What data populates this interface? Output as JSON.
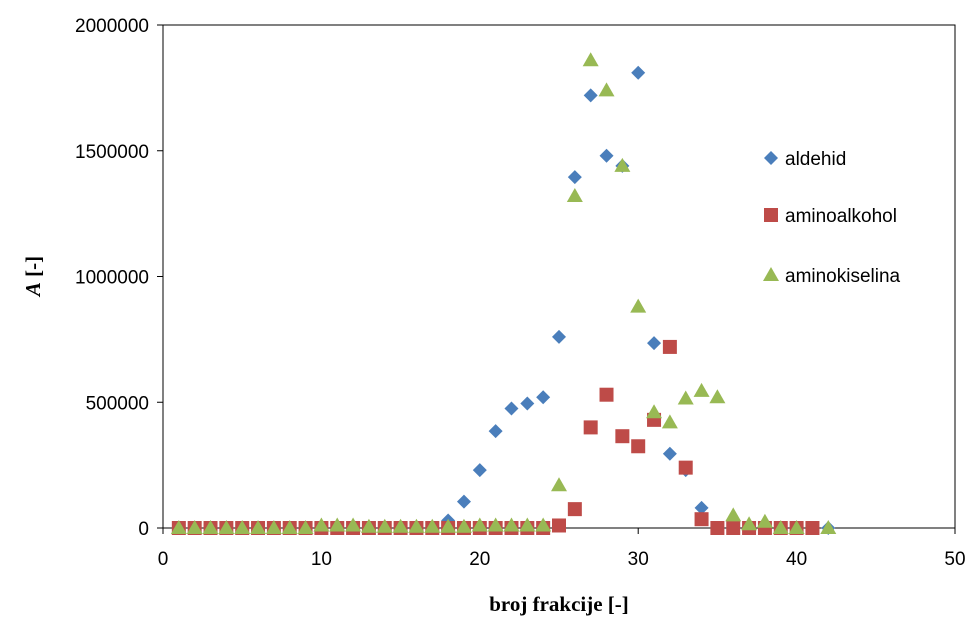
{
  "chart_data": {
    "type": "scatter",
    "xlabel": "broj frakcije [-]",
    "ylabel_italic": "A",
    "ylabel_rest": " [-]",
    "xlim": [
      0,
      50
    ],
    "ylim": [
      0,
      2000000
    ],
    "xticks": [
      0,
      10,
      20,
      30,
      40,
      50
    ],
    "yticks": [
      0,
      500000,
      1000000,
      1500000,
      2000000
    ],
    "grid": false,
    "legend_position": "right",
    "series": [
      {
        "name": "aldehid",
        "marker": "diamond",
        "color": "#4a7ebb",
        "x": [
          1,
          2,
          3,
          4,
          5,
          6,
          7,
          8,
          9,
          10,
          11,
          12,
          13,
          14,
          15,
          16,
          17,
          18,
          19,
          20,
          21,
          22,
          23,
          24,
          25,
          26,
          27,
          28,
          29,
          30,
          31,
          32,
          33,
          34,
          35,
          36,
          37,
          38,
          39,
          40,
          41,
          42
        ],
        "y": [
          0,
          0,
          0,
          0,
          0,
          0,
          0,
          0,
          0,
          0,
          0,
          0,
          0,
          0,
          0,
          0,
          0,
          30000,
          105000,
          230000,
          385000,
          475000,
          495000,
          520000,
          760000,
          1395000,
          1720000,
          1480000,
          1440000,
          1810000,
          735000,
          295000,
          230000,
          80000,
          0,
          0,
          0,
          0,
          0,
          0,
          0,
          0
        ]
      },
      {
        "name": "aminoalkohol",
        "marker": "square",
        "color": "#be4b48",
        "x": [
          1,
          2,
          3,
          4,
          5,
          6,
          7,
          8,
          9,
          10,
          11,
          12,
          13,
          14,
          15,
          16,
          17,
          18,
          19,
          20,
          21,
          22,
          23,
          24,
          25,
          26,
          27,
          28,
          29,
          30,
          31,
          32,
          33,
          34,
          35,
          36,
          37,
          38,
          39,
          40,
          41
        ],
        "y": [
          0,
          0,
          0,
          0,
          0,
          0,
          0,
          0,
          0,
          0,
          0,
          0,
          0,
          0,
          0,
          0,
          0,
          0,
          0,
          0,
          0,
          0,
          0,
          0,
          10000,
          75000,
          400000,
          530000,
          365000,
          325000,
          430000,
          720000,
          240000,
          35000,
          0,
          0,
          0,
          0,
          0,
          0,
          0
        ]
      },
      {
        "name": "aminokiselina",
        "marker": "triangle",
        "color": "#98b954",
        "x": [
          1,
          2,
          3,
          4,
          5,
          6,
          7,
          8,
          9,
          10,
          11,
          12,
          13,
          14,
          15,
          16,
          17,
          18,
          19,
          20,
          21,
          22,
          23,
          24,
          25,
          26,
          27,
          28,
          29,
          30,
          31,
          32,
          33,
          34,
          35,
          36,
          37,
          38,
          39,
          40,
          42
        ],
        "y": [
          0,
          0,
          0,
          0,
          0,
          0,
          0,
          0,
          0,
          10000,
          10000,
          10000,
          5000,
          5000,
          5000,
          5000,
          5000,
          5000,
          5000,
          10000,
          10000,
          10000,
          10000,
          10000,
          170000,
          1320000,
          1860000,
          1740000,
          1440000,
          880000,
          460000,
          420000,
          515000,
          545000,
          520000,
          50000,
          15000,
          25000,
          0,
          0,
          0
        ]
      }
    ]
  }
}
